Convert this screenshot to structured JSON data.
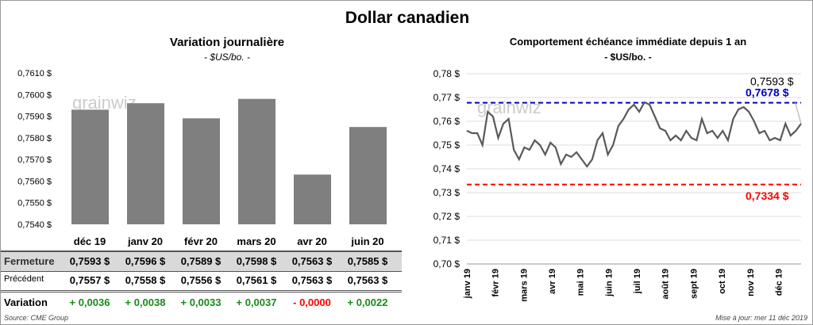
{
  "title": "Dollar canadien",
  "watermark": "grainwiz",
  "left": {
    "title": "Variation  journalière",
    "subtitle": "- $US/bo. -"
  },
  "right": {
    "title": "Comportement échéance immédiate depuis 1 an",
    "subtitle": "- $US/bo. -"
  },
  "table": {
    "row_labels": [
      "Fermeture",
      "Précédent",
      "Variation"
    ],
    "fermeture": [
      "0,7593  $",
      "0,7596  $",
      "0,7589  $",
      "0,7598  $",
      "0,7563  $",
      "0,7585  $"
    ],
    "precedent": [
      "0,7557  $",
      "0,7558  $",
      "0,7556  $",
      "0,7561  $",
      "0,7563  $",
      "0,7563  $"
    ],
    "variation": [
      "+ 0,0036",
      "+ 0,0038",
      "+ 0,0033",
      "+ 0,0037",
      "- 0,0000",
      "+ 0,0022"
    ],
    "variation_colors": [
      "#1a8a1a",
      "#1a8a1a",
      "#1a8a1a",
      "#1a8a1a",
      "#ff0000",
      "#1a8a1a"
    ]
  },
  "source": "Source: CME Group",
  "updated": "Mise à jour: mer 11 déc 2019",
  "chart_data": [
    {
      "type": "bar",
      "title": "Variation  journalière",
      "subtitle": "- $US/bo. -",
      "categories": [
        "déc 19",
        "janv 20",
        "févr 20",
        "mars 20",
        "avr 20",
        "juin 20"
      ],
      "values": [
        0.7593,
        0.7596,
        0.7589,
        0.7598,
        0.7563,
        0.7585
      ],
      "ylim": [
        0.754,
        0.761
      ],
      "yticks": [
        "0,7540 $",
        "0,7550 $",
        "0,7560 $",
        "0,7570 $",
        "0,7580 $",
        "0,7590 $",
        "0,7600 $",
        "0,7610 $"
      ],
      "color": "#7f7f7f"
    },
    {
      "type": "line",
      "title": "Comportement échéance immédiate depuis 1 an",
      "subtitle": "- $US/bo. -",
      "ylim": [
        0.7,
        0.78
      ],
      "yticks": [
        "0,70 $",
        "0,71 $",
        "0,72 $",
        "0,73 $",
        "0,74 $",
        "0,75 $",
        "0,76 $",
        "0,77 $",
        "0,78 $"
      ],
      "xticks": [
        "janv 19",
        "févr 19",
        "mars 19",
        "avr 19",
        "mai 19",
        "juin 19",
        "juil 19",
        "août 19",
        "sept 19",
        "oct 19",
        "nov 19",
        "déc 19"
      ],
      "values": [
        0.756,
        0.755,
        0.755,
        0.75,
        0.764,
        0.762,
        0.753,
        0.759,
        0.761,
        0.748,
        0.744,
        0.749,
        0.748,
        0.752,
        0.75,
        0.746,
        0.751,
        0.749,
        0.742,
        0.746,
        0.745,
        0.747,
        0.744,
        0.741,
        0.744,
        0.752,
        0.755,
        0.746,
        0.75,
        0.758,
        0.761,
        0.765,
        0.767,
        0.764,
        0.768,
        0.767,
        0.762,
        0.757,
        0.756,
        0.752,
        0.754,
        0.752,
        0.756,
        0.753,
        0.752,
        0.761,
        0.755,
        0.756,
        0.753,
        0.756,
        0.752,
        0.761,
        0.765,
        0.766,
        0.764,
        0.76,
        0.755,
        0.756,
        0.752,
        0.753,
        0.752,
        0.759,
        0.754,
        0.756,
        0.759
      ],
      "high": {
        "value": 0.7678,
        "label": "0,7678 $",
        "color": "#0000cc"
      },
      "low": {
        "value": 0.7334,
        "label": "0,7334 $",
        "color": "#ff0000"
      },
      "last": {
        "value": 0.7593,
        "label": "0,7593 $"
      }
    }
  ]
}
